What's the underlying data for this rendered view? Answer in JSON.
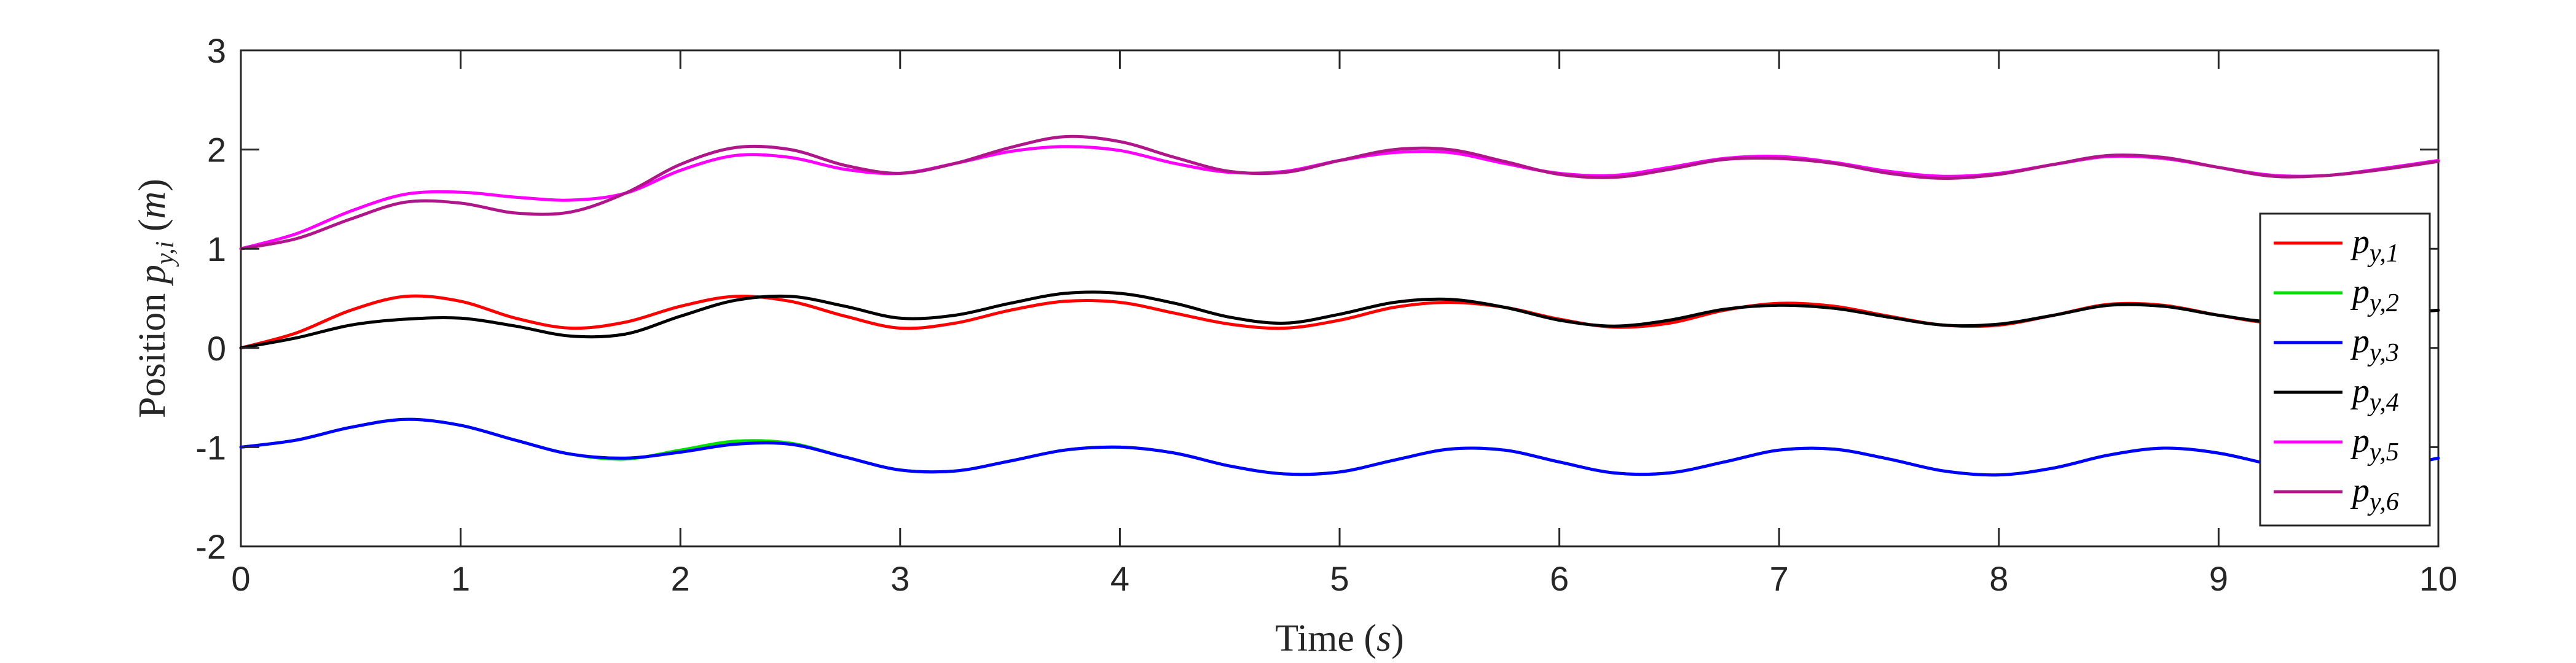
{
  "chart_data": {
    "type": "line",
    "xlabel": {
      "text": "Time (",
      "var": "s",
      "suffix": ")"
    },
    "ylabel": {
      "text": "Position ",
      "var": "p",
      "sub": "y,i",
      "unit_open": " (",
      "unit": "m",
      "unit_close": ")"
    },
    "xlim": [
      0,
      10
    ],
    "ylim": [
      -2,
      3
    ],
    "xticks": [
      "0",
      "1",
      "2",
      "3",
      "4",
      "5",
      "6",
      "7",
      "8",
      "9",
      "10"
    ],
    "yticks": [
      "-2",
      "-1",
      "0",
      "1",
      "2",
      "3"
    ],
    "grid": false,
    "legend_position": "right",
    "x": [
      0,
      0.25,
      0.5,
      0.75,
      1,
      1.25,
      1.5,
      1.75,
      2,
      2.25,
      2.5,
      2.75,
      3,
      3.25,
      3.5,
      3.75,
      4,
      4.25,
      4.5,
      4.75,
      5,
      5.25,
      5.5,
      5.75,
      6,
      6.25,
      6.5,
      6.75,
      7,
      7.25,
      7.5,
      7.75,
      8,
      8.25,
      8.5,
      8.75,
      9,
      9.25,
      9.5,
      9.75,
      10
    ],
    "series": [
      {
        "var": "p",
        "sub": "y,1",
        "color": "#ff0000",
        "values": [
          0.0,
          0.15,
          0.38,
          0.52,
          0.47,
          0.3,
          0.2,
          0.26,
          0.42,
          0.52,
          0.47,
          0.32,
          0.2,
          0.25,
          0.38,
          0.47,
          0.46,
          0.35,
          0.24,
          0.2,
          0.28,
          0.41,
          0.46,
          0.41,
          0.29,
          0.21,
          0.25,
          0.38,
          0.45,
          0.42,
          0.32,
          0.23,
          0.23,
          0.33,
          0.44,
          0.43,
          0.33,
          0.25,
          0.27,
          0.34,
          0.38
        ]
      },
      {
        "var": "p",
        "sub": "y,2",
        "color": "#00e000",
        "values": [
          -1.0,
          -0.93,
          -0.8,
          -0.72,
          -0.78,
          -0.93,
          -1.07,
          -1.12,
          -1.03,
          -0.94,
          -0.96,
          -1.1,
          -1.23,
          -1.24,
          -1.14,
          -1.03,
          -1.0,
          -1.06,
          -1.19,
          -1.27,
          -1.25,
          -1.13,
          -1.02,
          -1.03,
          -1.15,
          -1.26,
          -1.26,
          -1.15,
          -1.03,
          -1.02,
          -1.12,
          -1.24,
          -1.28,
          -1.21,
          -1.08,
          -1.01,
          -1.06,
          -1.18,
          -1.27,
          -1.22,
          -1.11
        ]
      },
      {
        "var": "p",
        "sub": "y,3",
        "color": "#0000ff",
        "values": [
          -1.0,
          -0.93,
          -0.8,
          -0.72,
          -0.78,
          -0.93,
          -1.07,
          -1.11,
          -1.05,
          -0.97,
          -0.97,
          -1.1,
          -1.23,
          -1.24,
          -1.14,
          -1.03,
          -1.0,
          -1.06,
          -1.19,
          -1.27,
          -1.25,
          -1.13,
          -1.02,
          -1.03,
          -1.15,
          -1.26,
          -1.26,
          -1.15,
          -1.03,
          -1.02,
          -1.12,
          -1.24,
          -1.28,
          -1.21,
          -1.08,
          -1.01,
          -1.06,
          -1.18,
          -1.27,
          -1.22,
          -1.11
        ]
      },
      {
        "var": "p",
        "sub": "y,4",
        "color": "#000000",
        "values": [
          0.0,
          0.1,
          0.23,
          0.29,
          0.3,
          0.22,
          0.12,
          0.14,
          0.32,
          0.48,
          0.52,
          0.42,
          0.3,
          0.33,
          0.45,
          0.55,
          0.55,
          0.45,
          0.31,
          0.25,
          0.34,
          0.46,
          0.49,
          0.41,
          0.28,
          0.22,
          0.28,
          0.39,
          0.43,
          0.4,
          0.31,
          0.23,
          0.24,
          0.33,
          0.43,
          0.42,
          0.33,
          0.26,
          0.28,
          0.34,
          0.38
        ]
      },
      {
        "var": "p",
        "sub": "y,5",
        "color": "#ff00ff",
        "values": [
          1.0,
          1.15,
          1.38,
          1.55,
          1.57,
          1.52,
          1.49,
          1.56,
          1.79,
          1.94,
          1.92,
          1.8,
          1.76,
          1.86,
          1.98,
          2.03,
          1.99,
          1.86,
          1.77,
          1.78,
          1.89,
          1.97,
          1.97,
          1.86,
          1.76,
          1.74,
          1.82,
          1.91,
          1.93,
          1.87,
          1.78,
          1.73,
          1.76,
          1.85,
          1.93,
          1.91,
          1.82,
          1.74,
          1.74,
          1.81,
          1.89
        ]
      },
      {
        "var": "p",
        "sub": "y,6",
        "color": "#b0158a",
        "values": [
          1.0,
          1.1,
          1.3,
          1.47,
          1.46,
          1.36,
          1.37,
          1.56,
          1.85,
          2.02,
          2.0,
          1.84,
          1.76,
          1.86,
          2.02,
          2.13,
          2.08,
          1.92,
          1.78,
          1.77,
          1.89,
          2.0,
          2.0,
          1.88,
          1.75,
          1.72,
          1.8,
          1.9,
          1.91,
          1.86,
          1.76,
          1.71,
          1.75,
          1.85,
          1.94,
          1.92,
          1.82,
          1.73,
          1.74,
          1.8,
          1.88
        ]
      }
    ]
  }
}
